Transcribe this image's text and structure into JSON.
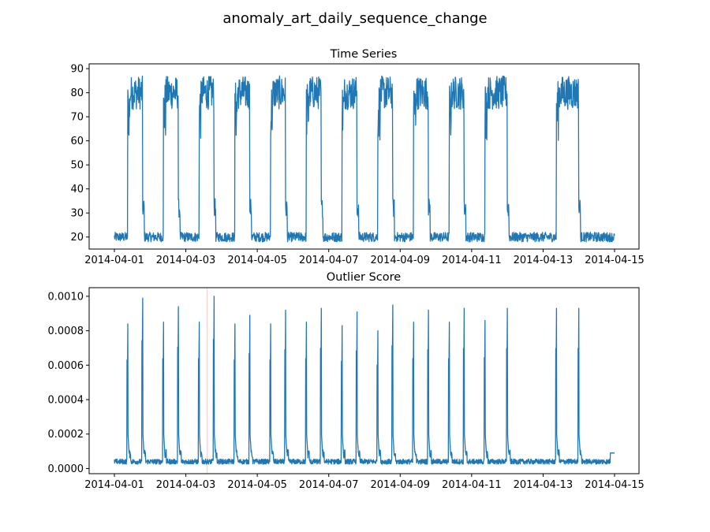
{
  "figure": {
    "title": "anomaly_art_daily_sequence_change"
  },
  "colors": {
    "series": "#1f77b4",
    "marker": "#ff9a9a"
  },
  "chart_data": [
    {
      "type": "line",
      "title": "Time Series",
      "xlabel": "",
      "ylabel": "",
      "x_range": [
        "2014-04-01",
        "2014-04-15"
      ],
      "x_ticks": [
        "2014-04-01",
        "2014-04-03",
        "2014-04-05",
        "2014-04-07",
        "2014-04-09",
        "2014-04-11",
        "2014-04-13",
        "2014-04-15"
      ],
      "ylim": [
        15,
        92
      ],
      "y_ticks": [
        20,
        30,
        40,
        50,
        60,
        70,
        80,
        90
      ],
      "grid": false,
      "baseline": 20,
      "high_band": [
        73,
        87
      ],
      "high_segments": [
        [
          "2014-04-01T09:00",
          "2014-04-01T19:00"
        ],
        [
          "2014-04-02T09:00",
          "2014-04-02T19:00"
        ],
        [
          "2014-04-03T09:00",
          "2014-04-03T19:00"
        ],
        [
          "2014-04-04T09:00",
          "2014-04-04T19:00"
        ],
        [
          "2014-04-05T09:00",
          "2014-04-05T19:00"
        ],
        [
          "2014-04-06T09:00",
          "2014-04-06T19:00"
        ],
        [
          "2014-04-07T09:00",
          "2014-04-07T19:00"
        ],
        [
          "2014-04-08T09:00",
          "2014-04-08T19:00"
        ],
        [
          "2014-04-09T09:00",
          "2014-04-09T19:00"
        ],
        [
          "2014-04-10T09:00",
          "2014-04-10T19:00"
        ],
        [
          "2014-04-11T09:00",
          "2014-04-12T00:00"
        ],
        [
          "2014-04-13T09:00",
          "2014-04-14T00:00"
        ]
      ]
    },
    {
      "type": "line",
      "title": "Outlier Score",
      "xlabel": "",
      "ylabel": "",
      "x_range": [
        "2014-04-01",
        "2014-04-15"
      ],
      "x_ticks": [
        "2014-04-01",
        "2014-04-03",
        "2014-04-05",
        "2014-04-07",
        "2014-04-09",
        "2014-04-11",
        "2014-04-13",
        "2014-04-15"
      ],
      "ylim": [
        -3e-05,
        0.00105
      ],
      "y_ticks": [
        "0.0000",
        "0.0002",
        "0.0004",
        "0.0006",
        "0.0008",
        "0.0010"
      ],
      "grid": false,
      "baseline": 4e-05,
      "marker_x": "2014-04-03T14:20",
      "spikes": [
        {
          "x": "2014-04-01T09:00",
          "y": 0.00084
        },
        {
          "x": "2014-04-01T19:00",
          "y": 0.00099
        },
        {
          "x": "2014-04-02T09:00",
          "y": 0.00085
        },
        {
          "x": "2014-04-02T19:00",
          "y": 0.00094
        },
        {
          "x": "2014-04-03T09:00",
          "y": 0.00085
        },
        {
          "x": "2014-04-03T19:00",
          "y": 0.001
        },
        {
          "x": "2014-04-04T09:00",
          "y": 0.00084
        },
        {
          "x": "2014-04-04T19:00",
          "y": 0.00089
        },
        {
          "x": "2014-04-05T09:00",
          "y": 0.00084
        },
        {
          "x": "2014-04-05T19:00",
          "y": 0.00092
        },
        {
          "x": "2014-04-06T09:00",
          "y": 0.00085
        },
        {
          "x": "2014-04-06T19:00",
          "y": 0.00093
        },
        {
          "x": "2014-04-07T09:00",
          "y": 0.00083
        },
        {
          "x": "2014-04-07T19:00",
          "y": 0.00091
        },
        {
          "x": "2014-04-08T09:00",
          "y": 0.0008
        },
        {
          "x": "2014-04-08T19:00",
          "y": 0.00095
        },
        {
          "x": "2014-04-09T09:00",
          "y": 0.00085
        },
        {
          "x": "2014-04-09T19:00",
          "y": 0.00092
        },
        {
          "x": "2014-04-10T09:00",
          "y": 0.00085
        },
        {
          "x": "2014-04-10T19:00",
          "y": 0.00093
        },
        {
          "x": "2014-04-11T09:00",
          "y": 0.00086
        },
        {
          "x": "2014-04-12T00:00",
          "y": 0.00093
        },
        {
          "x": "2014-04-13T09:00",
          "y": 0.00093
        },
        {
          "x": "2014-04-14T00:00",
          "y": 0.00093
        }
      ],
      "end_level": 9e-05
    }
  ]
}
